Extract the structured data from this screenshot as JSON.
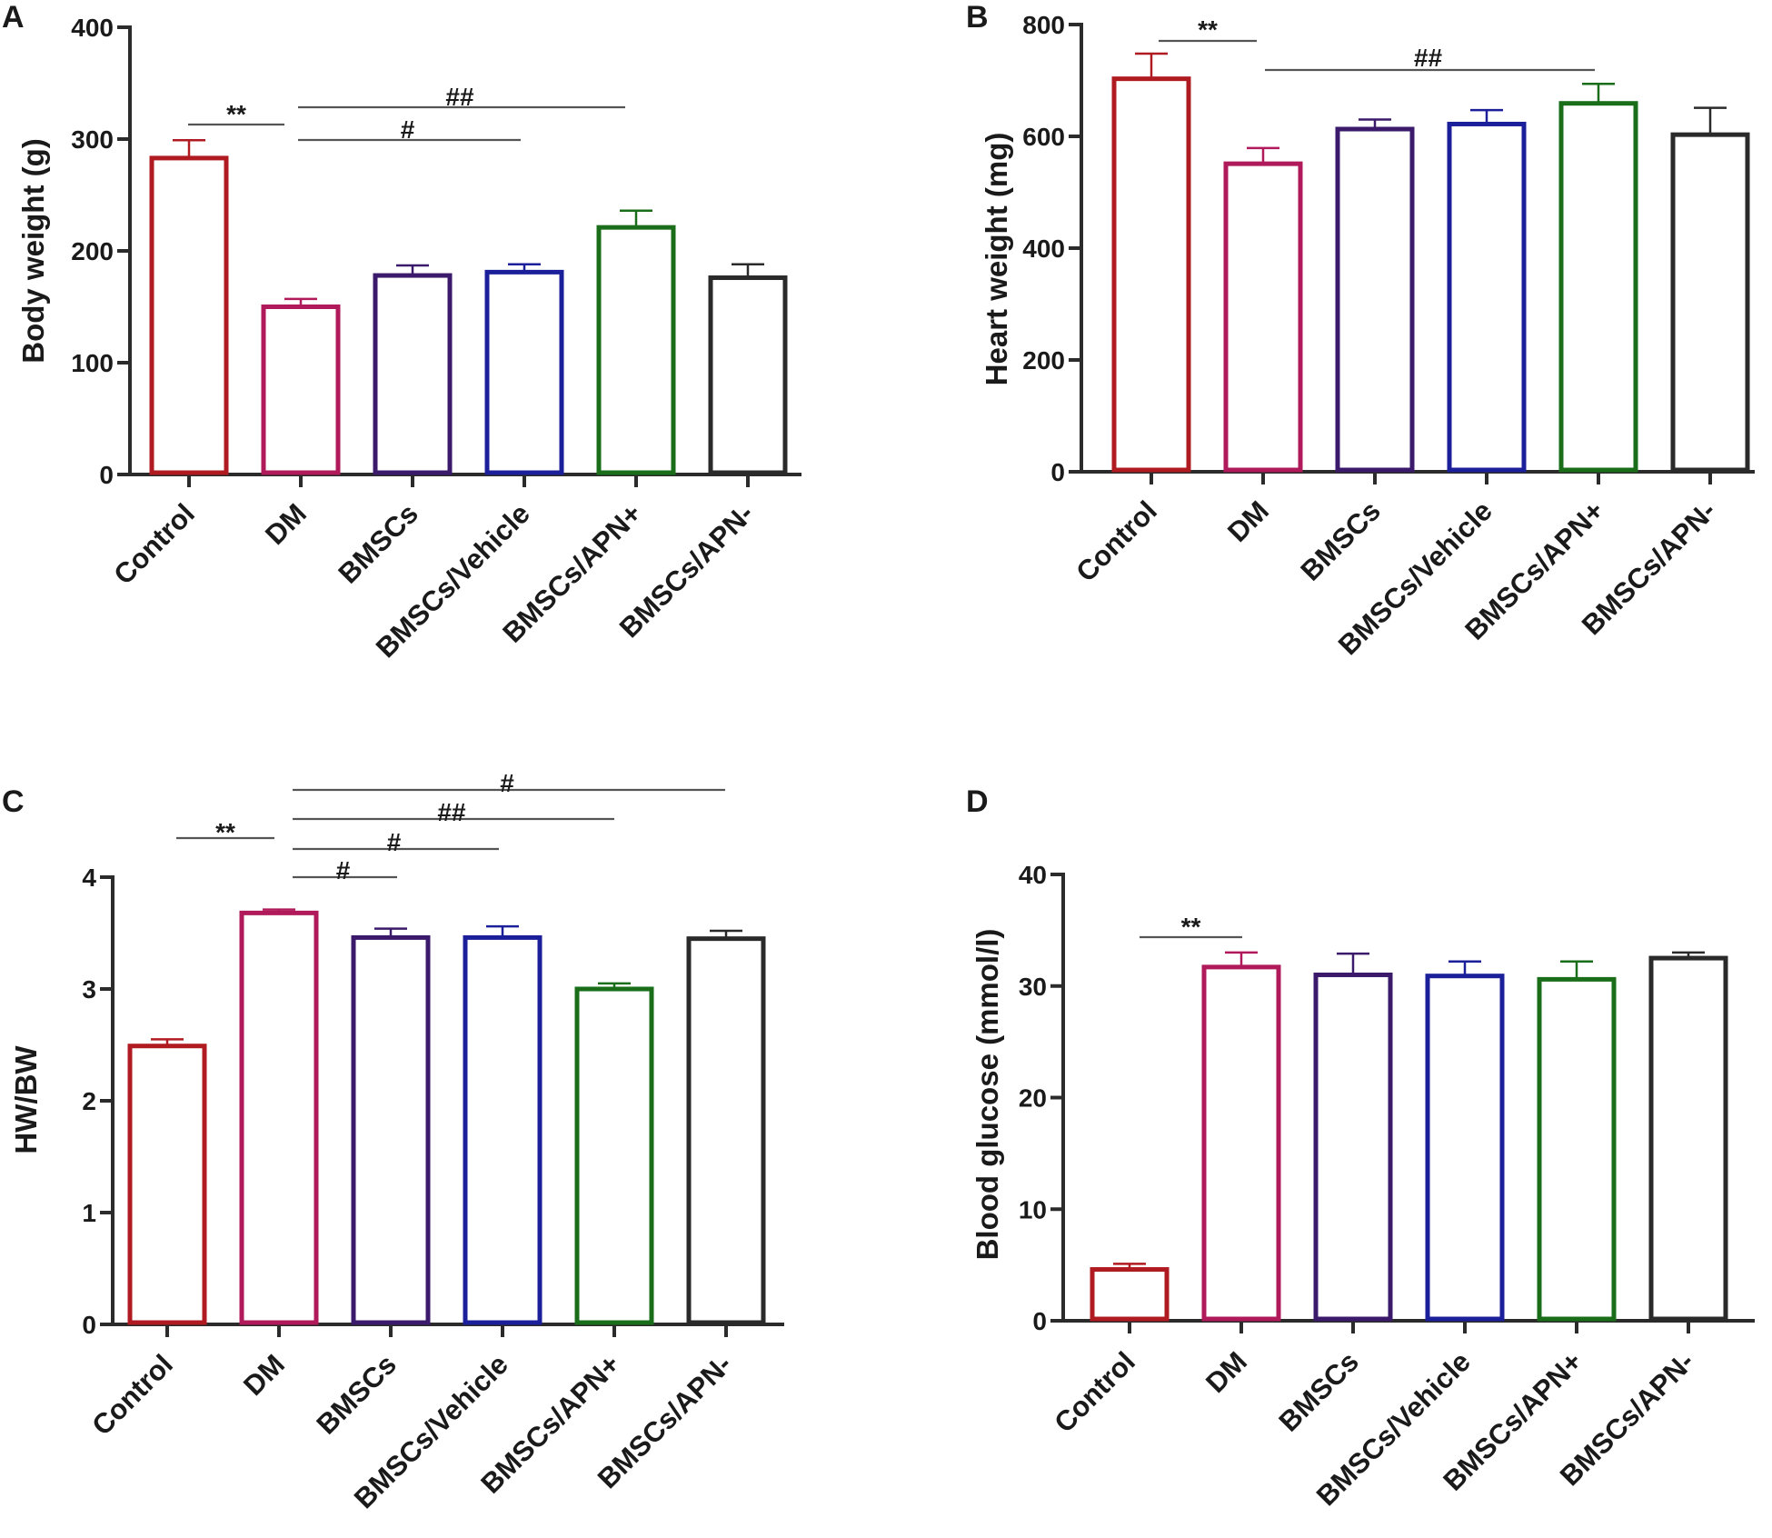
{
  "chart_data": [
    {
      "panel": "A",
      "type": "bar",
      "ylabel": "Body weight (g)",
      "xlabel": "",
      "ylim": [
        0,
        400
      ],
      "yticks": [
        0,
        100,
        200,
        300,
        400
      ],
      "categories": [
        "Control",
        "DM",
        "BMSCs",
        "BMSCs/Vehicle",
        "BMSCs/APN+",
        "BMSCs/APN-"
      ],
      "values": [
        283,
        150,
        178,
        181,
        221,
        176
      ],
      "errors": [
        16,
        7,
        9,
        7,
        15,
        12
      ],
      "annotations": [
        {
          "label": "**",
          "from": "Control",
          "to": "DM"
        },
        {
          "label": "##",
          "from": "DM",
          "to": "BMSCs/APN+"
        },
        {
          "label": "#",
          "from": "DM",
          "to": "BMSCs/Vehicle"
        }
      ]
    },
    {
      "panel": "B",
      "type": "bar",
      "ylabel": "Heart weight (mg)",
      "xlabel": "",
      "ylim": [
        0,
        800
      ],
      "yticks": [
        0,
        200,
        400,
        600,
        800
      ],
      "categories": [
        "Control",
        "DM",
        "BMSCs",
        "BMSCs/Vehicle",
        "BMSCs/APN+",
        "BMSCs/APN-"
      ],
      "values": [
        703,
        551,
        613,
        622,
        659,
        603
      ],
      "errors": [
        45,
        28,
        17,
        25,
        35,
        48
      ],
      "annotations": [
        {
          "label": "**",
          "from": "Control",
          "to": "DM"
        },
        {
          "label": "##",
          "from": "DM",
          "to": "BMSCs/APN+"
        }
      ]
    },
    {
      "panel": "C",
      "type": "bar",
      "ylabel": "HW/BW",
      "xlabel": "",
      "ylim": [
        0,
        4
      ],
      "yticks": [
        0,
        1,
        2,
        3,
        4
      ],
      "categories": [
        "Control",
        "DM",
        "BMSCs",
        "BMSCs/Vehicle",
        "BMSCs/APN+",
        "BMSCs/APN-"
      ],
      "values": [
        2.49,
        3.68,
        3.46,
        3.46,
        3.0,
        3.45
      ],
      "errors": [
        0.06,
        0.03,
        0.08,
        0.1,
        0.05,
        0.07
      ],
      "annotations": [
        {
          "label": "**",
          "from": "Control",
          "to": "DM"
        },
        {
          "label": "#",
          "from": "DM",
          "to": "BMSCs/APN-"
        },
        {
          "label": "##",
          "from": "DM",
          "to": "BMSCs/APN+"
        },
        {
          "label": "#",
          "from": "DM",
          "to": "BMSCs/Vehicle"
        },
        {
          "label": "#",
          "from": "DM",
          "to": "BMSCs"
        }
      ]
    },
    {
      "panel": "D",
      "type": "bar",
      "ylabel": "Blood glucose (mmol/l)",
      "xlabel": "",
      "ylim": [
        0,
        40
      ],
      "yticks": [
        0,
        10,
        20,
        30,
        40
      ],
      "categories": [
        "Control",
        "DM",
        "BMSCs",
        "BMSCs/Vehicle",
        "BMSCs/APN+",
        "BMSCs/APN-"
      ],
      "values": [
        4.6,
        31.7,
        31.0,
        30.9,
        30.6,
        32.5
      ],
      "errors": [
        0.5,
        1.3,
        1.9,
        1.3,
        1.6,
        0.5
      ],
      "annotations": [
        {
          "label": "**",
          "from": "Control",
          "to": "DM"
        }
      ]
    }
  ],
  "colors": {
    "Control": "#b01b22",
    "DM": "#b0195a",
    "BMSCs": "#3b1a6b",
    "BMSCs/Vehicle": "#1c1f9a",
    "BMSCs/APN+": "#1a6e1a",
    "BMSCs/APN-": "#2a2a2a"
  }
}
